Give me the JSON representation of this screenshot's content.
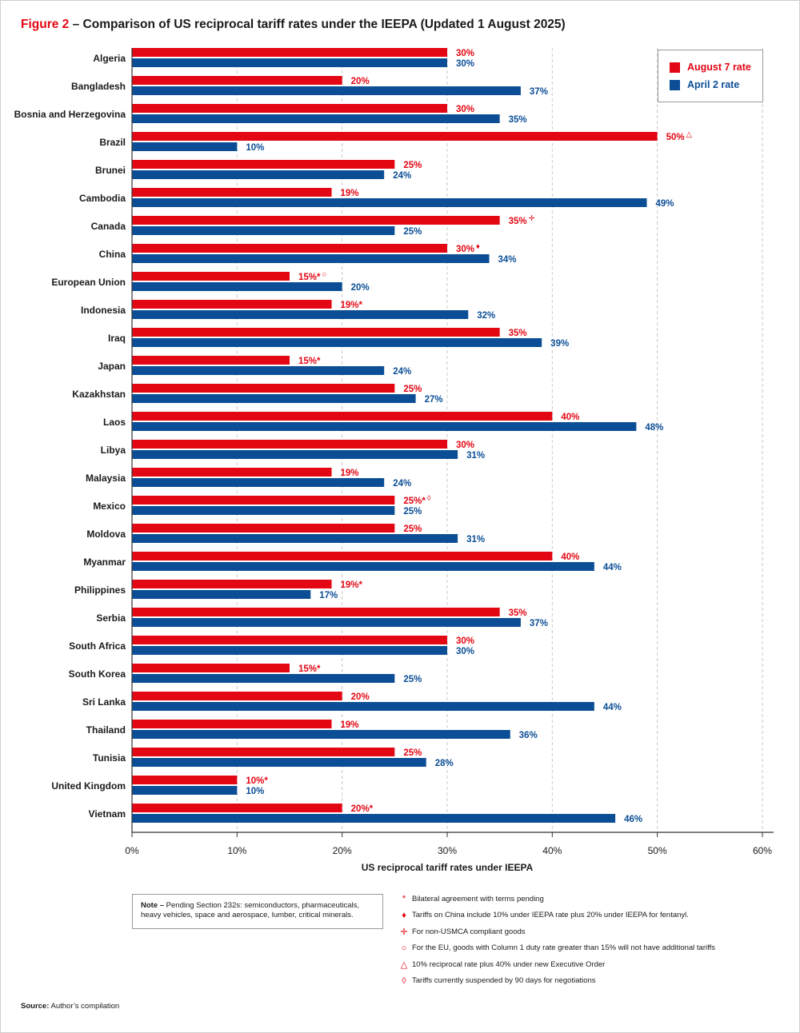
{
  "title": {
    "figure_label": "Figure 2",
    "text": " – Comparison of US reciprocal tariff rates under the IEEPA (Updated 1 August 2025)"
  },
  "colors": {
    "august": "#e30613",
    "april": "#0b4e96",
    "grid": "#c8c8c8",
    "axis": "#333333"
  },
  "legend": {
    "august_label": "August 7 rate",
    "april_label": "April 2 rate"
  },
  "chart_data": {
    "type": "bar",
    "orientation": "horizontal",
    "title": "Comparison of US reciprocal tariff rates under the IEEPA (Updated 1 August 2025)",
    "xlabel": "US reciprocal tariff rates under IEEPA",
    "ylabel": "",
    "xlim": [
      0,
      60
    ],
    "xticks": [
      0,
      10,
      20,
      30,
      40,
      50,
      60
    ],
    "xtick_labels": [
      "0%",
      "10%",
      "20%",
      "30%",
      "40%",
      "50%",
      "60%"
    ],
    "grid": "vertical dashed",
    "legend_position": "top-right",
    "categories": [
      "Algeria",
      "Bangladesh",
      "Bosnia and Herzegovina",
      "Brazil",
      "Brunei",
      "Cambodia",
      "Canada",
      "China",
      "European Union",
      "Indonesia",
      "Iraq",
      "Japan",
      "Kazakhstan",
      "Laos",
      "Libya",
      "Malaysia",
      "Mexico",
      "Moldova",
      "Myanmar",
      "Philippines",
      "Serbia",
      "South Africa",
      "South Korea",
      "Sri Lanka",
      "Thailand",
      "Tunisia",
      "United Kingdom",
      "Vietnam"
    ],
    "series": [
      {
        "name": "August 7 rate",
        "values": [
          30,
          20,
          30,
          50,
          25,
          19,
          35,
          30,
          15,
          19,
          35,
          15,
          25,
          40,
          30,
          19,
          25,
          25,
          40,
          19,
          35,
          30,
          15,
          20,
          19,
          25,
          10,
          20
        ],
        "labels": [
          "30%",
          "20%",
          "30%",
          "50%",
          "25%",
          "19%",
          "35%",
          "30%",
          "15%*",
          "19%*",
          "35%",
          "15%*",
          "25%",
          "40%",
          "30%",
          "19%",
          "25%*",
          "25%",
          "40%",
          "19%*",
          "35%",
          "30%",
          "15%*",
          "20%",
          "19%",
          "25%",
          "10%*",
          "20%*"
        ],
        "markers": [
          "",
          "",
          "",
          "△",
          "",
          "",
          "✛",
          "♦",
          "○",
          "",
          "",
          "",
          "",
          "",
          "",
          "",
          "◊",
          "",
          "",
          "",
          "",
          "",
          "",
          "",
          "",
          "",
          "",
          ""
        ]
      },
      {
        "name": "April 2 rate",
        "values": [
          30,
          37,
          35,
          10,
          24,
          49,
          25,
          34,
          20,
          32,
          39,
          24,
          27,
          48,
          31,
          24,
          25,
          31,
          44,
          17,
          37,
          30,
          25,
          44,
          36,
          28,
          10,
          46
        ],
        "labels": [
          "30%",
          "37%",
          "35%",
          "10%",
          "24%",
          "49%",
          "25%",
          "34%",
          "20%",
          "32%",
          "39%",
          "24%",
          "27%",
          "48%",
          "31%",
          "24%",
          "25%",
          "31%",
          "44%",
          "17%",
          "37%",
          "30%",
          "25%",
          "44%",
          "36%",
          "28%",
          "10%",
          "46%"
        ]
      }
    ]
  },
  "note": {
    "label": "Note –",
    "text": " Pending Section 232s: semiconductors, pharmaceuticals, heavy vehicles, space and aerospace, lumber, critical minerals."
  },
  "footnotes": [
    {
      "symbol": "*",
      "text": "Bilateral agreement with terms pending"
    },
    {
      "symbol": "♦",
      "text": "Tariffs on China include 10% under IEEPA rate plus 20% under IEEPA for fentanyl."
    },
    {
      "symbol": "✛",
      "text": "For non-USMCA compliant goods"
    },
    {
      "symbol": "○",
      "text": "For the EU, goods with Column 1 duty rate greater than 15% will not have additional tariffs"
    },
    {
      "symbol": "△",
      "text": "10% reciprocal rate plus 40% under new Executive Order"
    },
    {
      "symbol": "◊",
      "text": "Tariffs currently suspended by 90 days for negotiations"
    }
  ],
  "source": {
    "label": "Source:",
    "text": " Author’s compilation"
  }
}
